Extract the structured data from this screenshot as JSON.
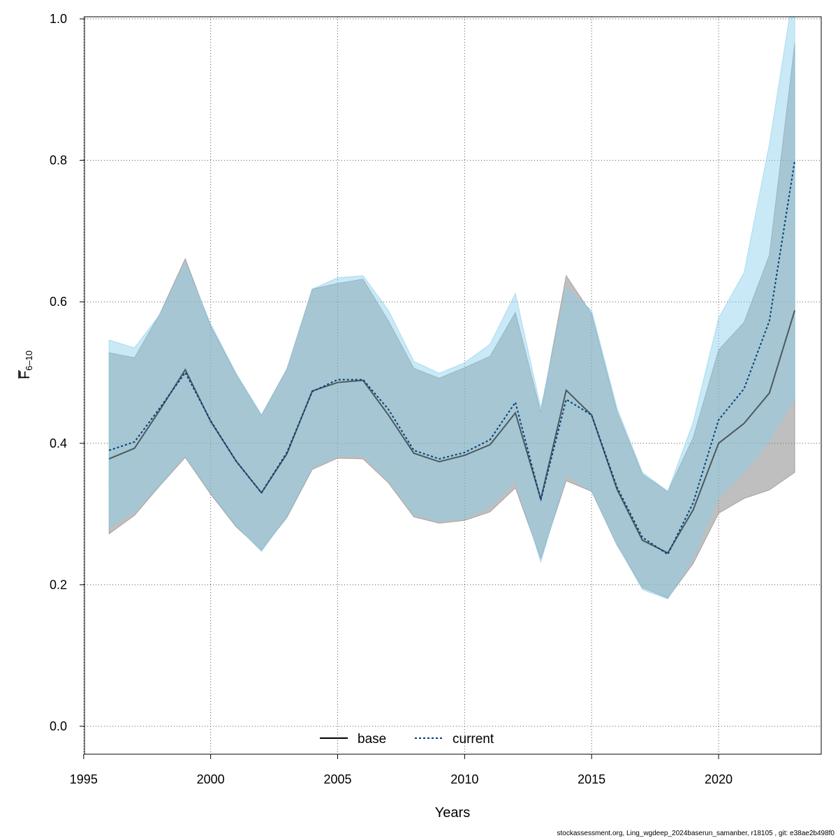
{
  "chart_data": {
    "type": "area",
    "xlabel": "Years",
    "ylabel": "F̄6-10",
    "ylabel_main": "F",
    "ylabel_sub": "6–10",
    "xlim": [
      1995,
      2024
    ],
    "ylim": [
      0.0,
      1.0
    ],
    "x_ticks": [
      1995,
      2000,
      2005,
      2010,
      2015,
      2020
    ],
    "y_ticks": [
      0.0,
      0.2,
      0.4,
      0.6,
      0.8,
      1.0
    ],
    "x_tick_labels": [
      "1995",
      "2000",
      "2005",
      "2010",
      "2015",
      "2020"
    ],
    "y_tick_labels": [
      "0.0",
      "0.2",
      "0.4",
      "0.6",
      "0.8",
      "1.0"
    ],
    "grid": true,
    "legend_position": "bottom-center",
    "x": [
      1996,
      1997,
      1998,
      1999,
      2000,
      2001,
      2002,
      2003,
      2004,
      2005,
      2006,
      2007,
      2008,
      2009,
      2010,
      2011,
      2012,
      2013,
      2014,
      2015,
      2016,
      2017,
      2018,
      2019,
      2020,
      2021,
      2022,
      2023
    ],
    "series": [
      {
        "name": "base",
        "line_style": "solid",
        "line_color": "#000000",
        "band_color": "#808080",
        "values": [
          0.378,
          0.393,
          0.447,
          0.504,
          0.431,
          0.375,
          0.33,
          0.385,
          0.474,
          0.486,
          0.489,
          0.44,
          0.386,
          0.374,
          0.383,
          0.398,
          0.443,
          0.321,
          0.475,
          0.44,
          0.335,
          0.263,
          0.245,
          0.306,
          0.4,
          0.428,
          0.471,
          0.588
        ],
        "lower": [
          0.272,
          0.298,
          0.34,
          0.38,
          0.328,
          0.282,
          0.249,
          0.295,
          0.363,
          0.379,
          0.378,
          0.344,
          0.296,
          0.287,
          0.291,
          0.303,
          0.337,
          0.237,
          0.347,
          0.332,
          0.256,
          0.196,
          0.181,
          0.23,
          0.301,
          0.322,
          0.334,
          0.359
        ],
        "upper": [
          0.528,
          0.521,
          0.583,
          0.661,
          0.566,
          0.498,
          0.44,
          0.505,
          0.618,
          0.626,
          0.632,
          0.573,
          0.506,
          0.492,
          0.507,
          0.523,
          0.585,
          0.444,
          0.637,
          0.583,
          0.445,
          0.356,
          0.332,
          0.408,
          0.532,
          0.571,
          0.666,
          0.966
        ]
      },
      {
        "name": "current",
        "line_style": "dotted",
        "line_color": "#00407a",
        "band_color": "#87ceeb",
        "values": [
          0.39,
          0.402,
          0.45,
          0.5,
          0.432,
          0.375,
          0.33,
          0.387,
          0.473,
          0.49,
          0.49,
          0.448,
          0.39,
          0.378,
          0.387,
          0.405,
          0.458,
          0.32,
          0.462,
          0.44,
          0.338,
          0.267,
          0.243,
          0.316,
          0.433,
          0.477,
          0.573,
          0.8
        ],
        "lower": [
          0.282,
          0.303,
          0.342,
          0.383,
          0.33,
          0.284,
          0.247,
          0.297,
          0.366,
          0.382,
          0.383,
          0.348,
          0.3,
          0.29,
          0.294,
          0.31,
          0.348,
          0.232,
          0.355,
          0.333,
          0.257,
          0.193,
          0.18,
          0.238,
          0.324,
          0.359,
          0.404,
          0.465
        ],
        "upper": [
          0.546,
          0.535,
          0.582,
          0.655,
          0.569,
          0.499,
          0.44,
          0.504,
          0.618,
          0.634,
          0.637,
          0.588,
          0.516,
          0.499,
          0.514,
          0.54,
          0.612,
          0.45,
          0.619,
          0.588,
          0.45,
          0.359,
          0.332,
          0.43,
          0.577,
          0.641,
          0.823,
          1.05
        ]
      }
    ]
  },
  "footer": "stockassessment.org, Ling_wgdeep_2024baserun_samanber, r18105 , git: e38ae2b498f0"
}
